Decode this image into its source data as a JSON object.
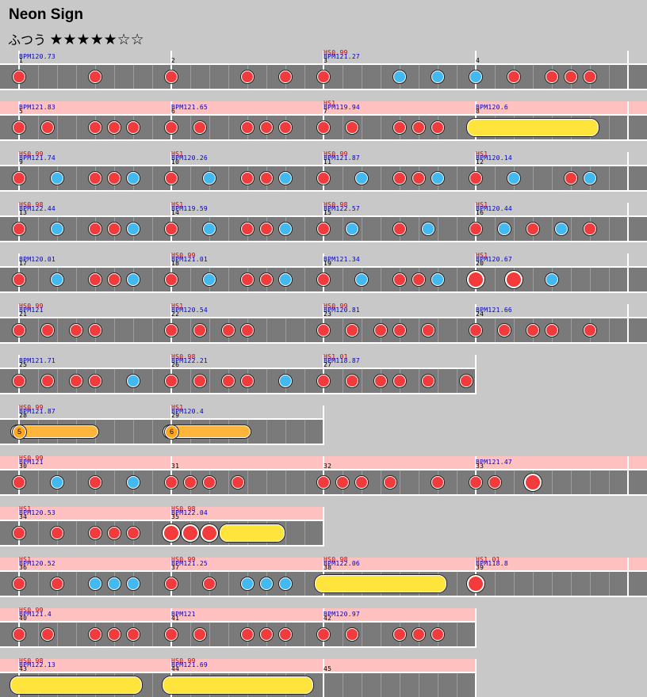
{
  "song_title": "Neon Sign",
  "difficulty": {
    "name": "ふつう",
    "stars": "★★★★★☆☆"
  },
  "colors": {
    "don": "#f23c3c",
    "ka": "#44b8f0",
    "roll": "#ffe53b",
    "balloon": "#ffb43c",
    "gogo": "#ffc0c0",
    "lane": "#7a7a7a",
    "hs": "#cc0000",
    "bpm": "#0000bb"
  },
  "rows": [
    {
      "gogo": false,
      "measures": [
        {
          "num": "1",
          "bpm": "BPM120.73",
          "notes": [
            [
              0,
              "d"
            ],
            [
              4,
              "d"
            ]
          ]
        },
        {
          "num": "2",
          "notes": [
            [
              0,
              "d"
            ],
            [
              4,
              "d"
            ],
            [
              6,
              "d"
            ]
          ]
        },
        {
          "num": "3",
          "hs": "HS0.99",
          "bpm": "BPM121.27",
          "notes": [
            [
              0,
              "d"
            ],
            [
              4,
              "k"
            ],
            [
              6,
              "k"
            ]
          ]
        },
        {
          "num": "4",
          "notes": [
            [
              0,
              "k"
            ],
            [
              2,
              "d"
            ],
            [
              4,
              "d"
            ],
            [
              5,
              "d"
            ],
            [
              6,
              "d"
            ]
          ]
        }
      ]
    },
    {
      "gogo": true,
      "measures": [
        {
          "num": "5",
          "bpm": "BPM121.83",
          "notes": [
            [
              0,
              "d"
            ],
            [
              1.5,
              "d"
            ],
            [
              4,
              "d"
            ],
            [
              5,
              "d"
            ],
            [
              6,
              "d"
            ]
          ]
        },
        {
          "num": "6",
          "bpm": "BPM121.65",
          "notes": [
            [
              0,
              "d"
            ],
            [
              1.5,
              "d"
            ],
            [
              4,
              "d"
            ],
            [
              5,
              "d"
            ],
            [
              6,
              "d"
            ]
          ]
        },
        {
          "num": "7",
          "hs": "HS1",
          "bpm": "BPM119.94",
          "notes": [
            [
              0,
              "d"
            ],
            [
              1.5,
              "d"
            ],
            [
              4,
              "d"
            ],
            [
              5,
              "d"
            ],
            [
              6,
              "d"
            ]
          ]
        },
        {
          "num": "8",
          "bpm": "BPM120.6",
          "notes": [],
          "rolls": [
            [
              0,
              6
            ]
          ]
        }
      ]
    },
    {
      "gogo": false,
      "measures": [
        {
          "num": "9",
          "hs": "HS0.99",
          "bpm": "BPM121.74",
          "notes": [
            [
              0,
              "d"
            ],
            [
              2,
              "k"
            ],
            [
              4,
              "d"
            ],
            [
              5,
              "d"
            ],
            [
              6,
              "k"
            ]
          ]
        },
        {
          "num": "10",
          "hs": "HS1",
          "bpm": "BPM120.26",
          "notes": [
            [
              0,
              "d"
            ],
            [
              2,
              "k"
            ],
            [
              4,
              "d"
            ],
            [
              5,
              "d"
            ],
            [
              6,
              "k"
            ]
          ]
        },
        {
          "num": "11",
          "hs": "HS0.99",
          "bpm": "BPM121.87",
          "notes": [
            [
              0,
              "d"
            ],
            [
              2,
              "k"
            ],
            [
              4,
              "d"
            ],
            [
              5,
              "d"
            ],
            [
              6,
              "k"
            ]
          ]
        },
        {
          "num": "12",
          "hs": "HS1",
          "bpm": "BPM120.14",
          "notes": [
            [
              0,
              "d"
            ],
            [
              2,
              "k"
            ],
            [
              5,
              "d"
            ],
            [
              6,
              "k"
            ]
          ]
        }
      ]
    },
    {
      "gogo": false,
      "measures": [
        {
          "num": "13",
          "hs": "HS0.98",
          "bpm": "BPM122.44",
          "notes": [
            [
              0,
              "d"
            ],
            [
              2,
              "k"
            ],
            [
              4,
              "d"
            ],
            [
              5,
              "d"
            ],
            [
              6,
              "k"
            ]
          ]
        },
        {
          "num": "14",
          "hs": "HS1",
          "bpm": "BPM119.59",
          "notes": [
            [
              0,
              "d"
            ],
            [
              2,
              "k"
            ],
            [
              4,
              "d"
            ],
            [
              5,
              "d"
            ],
            [
              6,
              "k"
            ]
          ]
        },
        {
          "num": "15",
          "hs": "HS0.98",
          "bpm": "BPM122.57",
          "notes": [
            [
              0,
              "d"
            ],
            [
              1.5,
              "k"
            ],
            [
              4,
              "d"
            ],
            [
              5.5,
              "k"
            ]
          ]
        },
        {
          "num": "16",
          "hs": "HS1",
          "bpm": "BPM120.44",
          "notes": [
            [
              0,
              "d"
            ],
            [
              1.5,
              "k"
            ],
            [
              3,
              "d"
            ],
            [
              4.5,
              "k"
            ],
            [
              6,
              "d"
            ]
          ]
        }
      ]
    },
    {
      "gogo": false,
      "measures": [
        {
          "num": "17",
          "bpm": "BPM120.01",
          "notes": [
            [
              0,
              "d"
            ],
            [
              2,
              "k"
            ],
            [
              4,
              "d"
            ],
            [
              5,
              "d"
            ],
            [
              6,
              "k"
            ]
          ]
        },
        {
          "num": "18",
          "hs": "HS0.99",
          "bpm": "BPM121.01",
          "notes": [
            [
              0,
              "d"
            ],
            [
              2,
              "k"
            ],
            [
              4,
              "d"
            ],
            [
              5,
              "d"
            ],
            [
              6,
              "k"
            ]
          ]
        },
        {
          "num": "19",
          "bpm": "BPM121.34",
          "notes": [
            [
              0,
              "d"
            ],
            [
              2,
              "k"
            ],
            [
              4,
              "d"
            ],
            [
              5,
              "d"
            ],
            [
              6,
              "k"
            ]
          ]
        },
        {
          "num": "20",
          "hs": "HS1",
          "bpm": "BPM120.67",
          "notes": [
            [
              0,
              "D"
            ],
            [
              2,
              "D"
            ],
            [
              4,
              "k"
            ]
          ]
        }
      ]
    },
    {
      "gogo": false,
      "measures": [
        {
          "num": "21",
          "hs": "HS0.99",
          "bpm": "BPM121",
          "notes": [
            [
              0,
              "d"
            ],
            [
              1.5,
              "d"
            ],
            [
              3,
              "d"
            ],
            [
              4,
              "d"
            ]
          ]
        },
        {
          "num": "22",
          "hs": "HS1",
          "bpm": "BPM120.54",
          "notes": [
            [
              0,
              "d"
            ],
            [
              1.5,
              "d"
            ],
            [
              3,
              "d"
            ],
            [
              4,
              "d"
            ]
          ]
        },
        {
          "num": "23",
          "hs": "HS0.99",
          "bpm": "BPM120.81",
          "notes": [
            [
              0,
              "d"
            ],
            [
              1.5,
              "d"
            ],
            [
              3,
              "d"
            ],
            [
              4,
              "d"
            ],
            [
              5.5,
              "d"
            ]
          ]
        },
        {
          "num": "24",
          "bpm": "BPM121.66",
          "notes": [
            [
              0,
              "d"
            ],
            [
              1.5,
              "d"
            ],
            [
              3,
              "d"
            ],
            [
              4,
              "d"
            ],
            [
              6,
              "d"
            ]
          ]
        }
      ]
    },
    {
      "gogo": false,
      "measures": [
        {
          "num": "25",
          "bpm": "BPM121.71",
          "notes": [
            [
              0,
              "d"
            ],
            [
              1.5,
              "d"
            ],
            [
              3,
              "d"
            ],
            [
              4,
              "d"
            ],
            [
              6,
              "k"
            ]
          ]
        },
        {
          "num": "26",
          "hs": "HS0.98",
          "bpm": "BPM122.21",
          "notes": [
            [
              0,
              "d"
            ],
            [
              1.5,
              "d"
            ],
            [
              3,
              "d"
            ],
            [
              4,
              "d"
            ],
            [
              6,
              "k"
            ]
          ]
        },
        {
          "num": "27",
          "hs": "HS1.01",
          "bpm": "BPM118.87",
          "notes": [
            [
              0,
              "d"
            ],
            [
              1.5,
              "d"
            ],
            [
              3,
              "d"
            ],
            [
              4,
              "d"
            ],
            [
              5.5,
              "d"
            ],
            [
              7.5,
              "d"
            ]
          ]
        }
      ]
    },
    {
      "gogo": false,
      "measures": [
        {
          "num": "28",
          "hs": "HS0.99",
          "bpm": "BPM121.87",
          "notes": [],
          "balloons": [
            [
              0,
              4,
              "5"
            ]
          ]
        },
        {
          "num": "29",
          "hs": "HS1",
          "bpm": "BPM120.4",
          "notes": [],
          "balloons": [
            [
              0,
              4,
              "6"
            ]
          ]
        }
      ]
    },
    {
      "gogo": true,
      "measures": [
        {
          "num": "30",
          "hs": "HS0.99",
          "bpm": "BPM121",
          "notes": [
            [
              0,
              "d"
            ],
            [
              2,
              "k"
            ],
            [
              4,
              "d"
            ],
            [
              6,
              "k"
            ]
          ]
        },
        {
          "num": "31",
          "notes": [
            [
              0,
              "d"
            ],
            [
              1,
              "d"
            ],
            [
              2,
              "d"
            ],
            [
              3.5,
              "d"
            ]
          ]
        },
        {
          "num": "32",
          "notes": [
            [
              0,
              "d"
            ],
            [
              1,
              "d"
            ],
            [
              2,
              "d"
            ],
            [
              3.5,
              "d"
            ],
            [
              6,
              "d"
            ]
          ]
        },
        {
          "num": "33",
          "bpm": "BPM121.47",
          "notes": [
            [
              0,
              "d"
            ],
            [
              1,
              "d"
            ],
            [
              3,
              "D"
            ]
          ]
        }
      ]
    },
    {
      "gogo": true,
      "measures": [
        {
          "num": "34",
          "hs": "HS1",
          "bpm": "BPM120.53",
          "notes": [
            [
              0,
              "d"
            ],
            [
              2,
              "d"
            ],
            [
              4,
              "d"
            ],
            [
              5,
              "d"
            ],
            [
              6,
              "d"
            ]
          ]
        },
        {
          "num": "35",
          "hs": "HS0.98",
          "bpm": "BPM122.04",
          "notes": [
            [
              0,
              "D"
            ],
            [
              1,
              "D"
            ],
            [
              2,
              "D"
            ]
          ],
          "rolls": [
            [
              3,
              5.5
            ]
          ]
        }
      ]
    },
    {
      "gogo": true,
      "measures": [
        {
          "num": "36",
          "hs": "HS1",
          "bpm": "BPM120.52",
          "notes": [
            [
              0,
              "d"
            ],
            [
              2,
              "d"
            ],
            [
              4,
              "k"
            ],
            [
              5,
              "k"
            ],
            [
              6,
              "k"
            ]
          ]
        },
        {
          "num": "37",
          "hs": "HS0.99",
          "bpm": "BPM121.25",
          "notes": [
            [
              0,
              "d"
            ],
            [
              2,
              "d"
            ],
            [
              4,
              "k"
            ],
            [
              5,
              "k"
            ],
            [
              6,
              "k"
            ]
          ]
        },
        {
          "num": "38",
          "hs": "HS0.98",
          "bpm": "BPM122.06",
          "notes": [],
          "rolls": [
            [
              0,
              6
            ]
          ]
        },
        {
          "num": "39",
          "hs": "HS1.01",
          "bpm": "BPM118.8",
          "notes": [
            [
              0,
              "D"
            ]
          ]
        }
      ]
    },
    {
      "gogo": true,
      "measures": [
        {
          "num": "40",
          "hs": "HS0.99",
          "bpm": "BPM121.4",
          "notes": [
            [
              0,
              "d"
            ],
            [
              1.5,
              "d"
            ],
            [
              4,
              "d"
            ],
            [
              5,
              "d"
            ],
            [
              6,
              "d"
            ]
          ]
        },
        {
          "num": "41",
          "bpm": "BPM121",
          "notes": [
            [
              0,
              "d"
            ],
            [
              1.5,
              "d"
            ],
            [
              4,
              "d"
            ],
            [
              5,
              "d"
            ],
            [
              6,
              "d"
            ]
          ]
        },
        {
          "num": "42",
          "bpm": "BPM120.97",
          "notes": [
            [
              0,
              "d"
            ],
            [
              1.5,
              "d"
            ],
            [
              4,
              "d"
            ],
            [
              5,
              "d"
            ],
            [
              6,
              "d"
            ]
          ]
        }
      ]
    },
    {
      "gogo": true,
      "measures": [
        {
          "num": "43",
          "hs": "HS0.98",
          "bpm": "BPM122.13",
          "notes": [],
          "rolls": [
            [
              0,
              6
            ]
          ]
        },
        {
          "num": "44",
          "hs": "HS0.99",
          "bpm": "BPM121.69",
          "notes": [],
          "rolls": [
            [
              0,
              7
            ]
          ]
        },
        {
          "num": "45",
          "notes": []
        }
      ]
    }
  ]
}
